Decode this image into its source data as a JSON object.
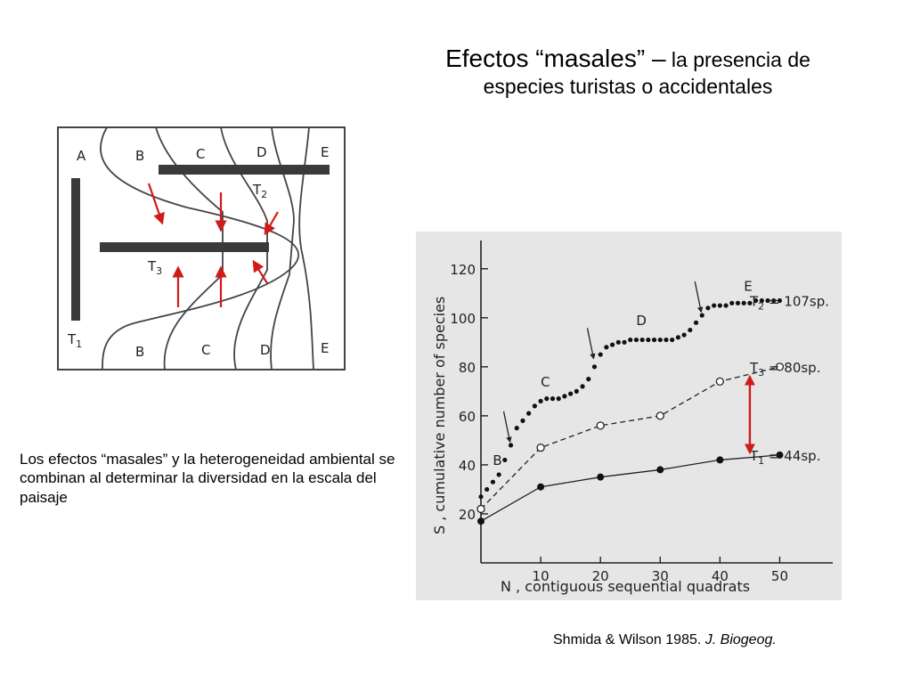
{
  "slide": {
    "title_main": "Efectos “masales” –",
    "title_rest": " la presencia de",
    "title_line2": "especies turistas o accidentales",
    "body_text": "Los efectos “masales” y la heterogeneidad ambiental se combinan al determinar la diversidad en la escala del paisaje",
    "citation_authors": "Shmida & Wilson 1985. ",
    "citation_journal": "J. Biogeog."
  },
  "diagram": {
    "zone_labels_top": [
      "A",
      "B",
      "C",
      "D",
      "E"
    ],
    "zone_labels_bottom": [
      "B",
      "C",
      "D",
      "E"
    ],
    "transect_labels": {
      "t1": "T",
      "t1_sub": "1",
      "t2": "T",
      "t2_sub": "2",
      "t3": "T",
      "t3_sub": "3"
    },
    "arrow_color": "#d11a1a",
    "bar_color": "#3a3a3a"
  },
  "chart_data": {
    "type": "scatter",
    "xlabel": "N , contiguous   sequential  quadrats",
    "ylabel": "S , cumulative  number  of  species",
    "x_ticks": [
      10,
      20,
      30,
      40,
      50
    ],
    "y_ticks": [
      20,
      40,
      60,
      80,
      100,
      120
    ],
    "xlim": [
      0,
      55
    ],
    "ylim": [
      0,
      125
    ],
    "zone_annotations": [
      {
        "label": "B",
        "x": 2,
        "y": 40
      },
      {
        "label": "C",
        "x": 10,
        "y": 72
      },
      {
        "label": "D",
        "x": 26,
        "y": 97
      },
      {
        "label": "E",
        "x": 44,
        "y": 111
      }
    ],
    "zone_arrows": [
      {
        "x": 5,
        "y": 48
      },
      {
        "x": 19,
        "y": 82
      },
      {
        "x": 37,
        "y": 101
      }
    ],
    "double_arrow": {
      "x": 45,
      "y_from": 44,
      "y_to": 77,
      "color": "#d11a1a"
    },
    "series": [
      {
        "name": "T2",
        "legend": "= 107sp.",
        "style": "dotted-filled",
        "x": [
          0,
          1,
          2,
          3,
          4,
          5,
          6,
          7,
          8,
          9,
          10,
          11,
          12,
          13,
          14,
          15,
          16,
          17,
          18,
          19,
          20,
          21,
          22,
          23,
          24,
          25,
          26,
          27,
          28,
          29,
          30,
          31,
          32,
          33,
          34,
          35,
          36,
          37,
          38,
          39,
          40,
          41,
          42,
          43,
          44,
          45,
          46,
          47,
          48,
          49,
          50
        ],
        "y": [
          27,
          30,
          33,
          36,
          42,
          48,
          55,
          58,
          61,
          64,
          66,
          67,
          67,
          67,
          68,
          69,
          70,
          72,
          75,
          80,
          85,
          88,
          89,
          90,
          90,
          91,
          91,
          91,
          91,
          91,
          91,
          91,
          91,
          92,
          93,
          95,
          98,
          101,
          104,
          105,
          105,
          105,
          106,
          106,
          106,
          106,
          107,
          107,
          107,
          107,
          107
        ]
      },
      {
        "name": "T3",
        "legend": "= 80sp.",
        "style": "dashed-open",
        "x": [
          0,
          10,
          20,
          30,
          40,
          50
        ],
        "y": [
          22,
          47,
          56,
          60,
          74,
          80
        ]
      },
      {
        "name": "T1",
        "legend": "= 44sp.",
        "style": "solid-filled",
        "x": [
          0,
          10,
          20,
          30,
          40,
          50
        ],
        "y": [
          17,
          31,
          35,
          38,
          42,
          44
        ]
      }
    ]
  }
}
